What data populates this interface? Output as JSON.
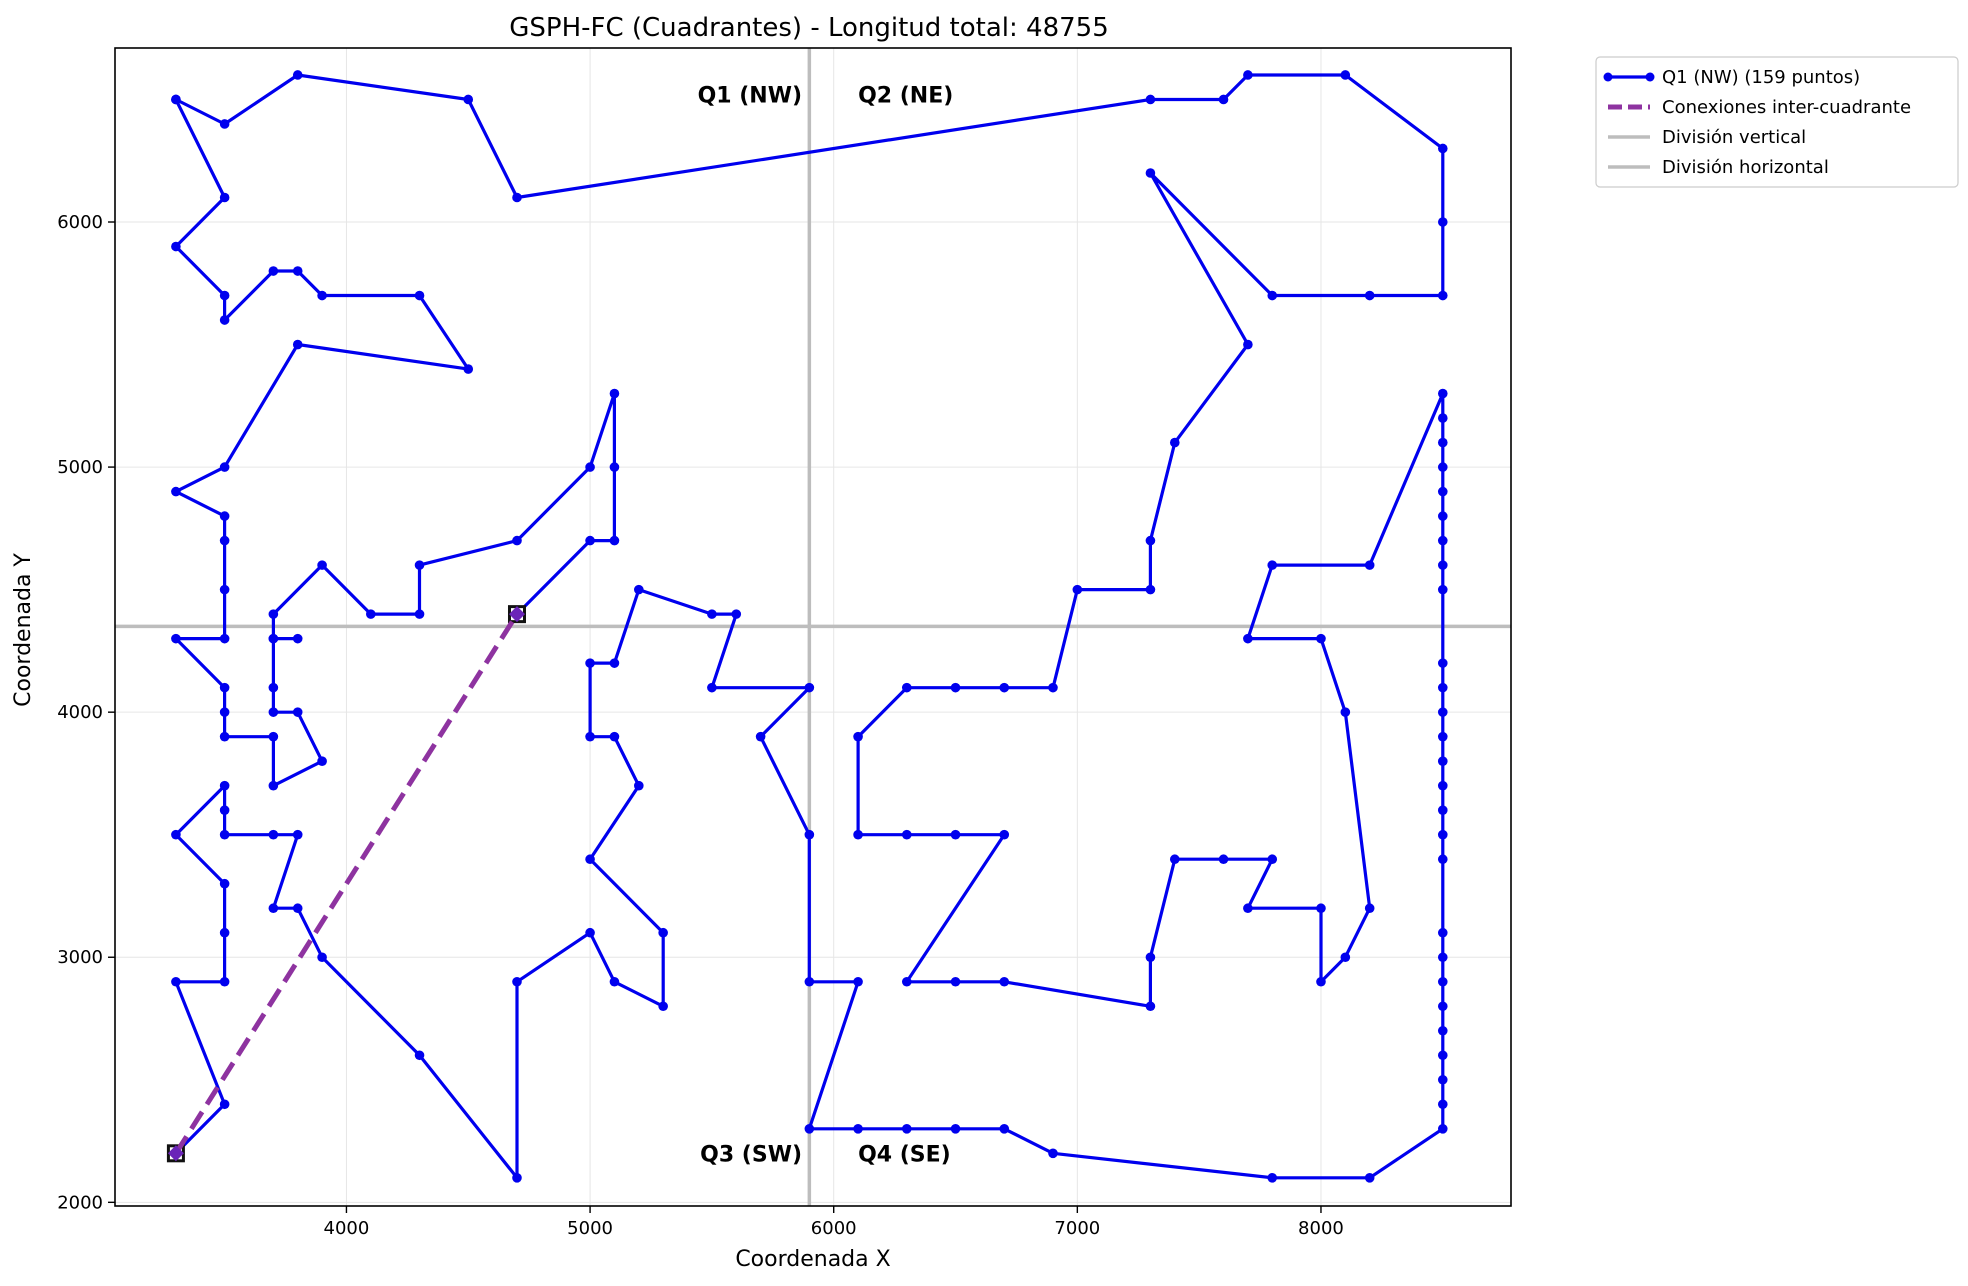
{
  "chart_data": {
    "type": "line",
    "title": "GSPH-FC (Cuadrantes) - Longitud total: 48755",
    "xlabel": "Coordenada X",
    "ylabel": "Coordenada Y",
    "xlim": [
      3050,
      8780
    ],
    "ylim": [
      1985,
      6710
    ],
    "x_ticks": [
      4000,
      5000,
      6000,
      7000,
      8000
    ],
    "y_ticks": [
      2000,
      3000,
      4000,
      5000,
      6000
    ],
    "grid": true,
    "legend_position": "outside-top-right",
    "legend": [
      {
        "label": "Q1 (NW) (159 puntos)",
        "style": "line-marker",
        "color": "#0000ee"
      },
      {
        "label": "Conexiones inter-cuadrante",
        "style": "dashed",
        "color": "#8e33a0"
      },
      {
        "label": "División vertical",
        "style": "line",
        "color": "#bdbdbd"
      },
      {
        "label": "División horizontal",
        "style": "line",
        "color": "#bdbdbd"
      }
    ],
    "divisions": {
      "vertical_x": 5900,
      "horizontal_y": 4350
    },
    "quadrant_labels": [
      {
        "text": "Q1 (NW)",
        "x": 5870,
        "y": 6520,
        "anchor": "end"
      },
      {
        "text": "Q2 (NE)",
        "x": 6100,
        "y": 6520,
        "anchor": "start"
      },
      {
        "text": "Q3 (SW)",
        "x": 5870,
        "y": 2200,
        "anchor": "end"
      },
      {
        "text": "Q4 (SE)",
        "x": 6100,
        "y": 2200,
        "anchor": "start"
      }
    ],
    "series": [
      {
        "name": "Q1 (NW) (159 puntos)",
        "color": "#0000ee",
        "segments": [
          [
            [
              3300,
              6500
            ],
            [
              3500,
              6400
            ],
            [
              3800,
              6600
            ],
            [
              4500,
              6500
            ],
            [
              4700,
              6100
            ],
            [
              7300,
              6500
            ],
            [
              7600,
              6500
            ],
            [
              7700,
              6600
            ],
            [
              8100,
              6600
            ],
            [
              8500,
              6300
            ],
            [
              8500,
              6000
            ],
            [
              8500,
              5700
            ],
            [
              8200,
              5700
            ],
            [
              7800,
              5700
            ],
            [
              7300,
              6200
            ],
            [
              7700,
              5500
            ],
            [
              7400,
              5100
            ],
            [
              7300,
              4700
            ],
            [
              7300,
              4500
            ],
            [
              7000,
              4500
            ],
            [
              6900,
              4100
            ],
            [
              6700,
              4100
            ],
            [
              6500,
              4100
            ],
            [
              6300,
              4100
            ],
            [
              6100,
              3900
            ],
            [
              6100,
              3500
            ],
            [
              6300,
              3500
            ],
            [
              6500,
              3500
            ],
            [
              6700,
              3500
            ],
            [
              6300,
              2900
            ],
            [
              6500,
              2900
            ],
            [
              6700,
              2900
            ],
            [
              7300,
              2800
            ],
            [
              7300,
              3000
            ],
            [
              7400,
              3400
            ],
            [
              7600,
              3400
            ],
            [
              7800,
              3400
            ],
            [
              7700,
              3200
            ],
            [
              8000,
              3200
            ],
            [
              8000,
              2900
            ],
            [
              8100,
              3000
            ],
            [
              8200,
              3200
            ],
            [
              8100,
              4000
            ],
            [
              8000,
              4300
            ],
            [
              7700,
              4300
            ],
            [
              7800,
              4600
            ],
            [
              8200,
              4600
            ],
            [
              8500,
              5300
            ],
            [
              8500,
              5200
            ],
            [
              8500,
              5100
            ],
            [
              8500,
              5000
            ],
            [
              8500,
              4900
            ],
            [
              8500,
              4800
            ],
            [
              8500,
              4700
            ],
            [
              8500,
              4600
            ],
            [
              8500,
              4500
            ],
            [
              8500,
              4200
            ],
            [
              8500,
              4100
            ],
            [
              8500,
              4000
            ],
            [
              8500,
              3900
            ],
            [
              8500,
              3800
            ],
            [
              8500,
              3700
            ],
            [
              8500,
              3600
            ],
            [
              8500,
              3500
            ],
            [
              8500,
              3400
            ],
            [
              8500,
              3100
            ],
            [
              8500,
              3000
            ],
            [
              8500,
              2900
            ],
            [
              8500,
              2800
            ],
            [
              8500,
              2700
            ],
            [
              8500,
              2600
            ],
            [
              8500,
              2500
            ],
            [
              8500,
              2400
            ],
            [
              8500,
              2300
            ],
            [
              8200,
              2100
            ],
            [
              7800,
              2100
            ],
            [
              6900,
              2200
            ],
            [
              6700,
              2300
            ],
            [
              6500,
              2300
            ],
            [
              6300,
              2300
            ],
            [
              6100,
              2300
            ],
            [
              5900,
              2300
            ],
            [
              6100,
              2900
            ],
            [
              5900,
              2900
            ],
            [
              5900,
              3500
            ],
            [
              5700,
              3900
            ],
            [
              5900,
              4100
            ],
            [
              5500,
              4100
            ],
            [
              5600,
              4400
            ],
            [
              5500,
              4400
            ],
            [
              5200,
              4500
            ],
            [
              5100,
              4200
            ],
            [
              5000,
              4200
            ],
            [
              5000,
              3900
            ],
            [
              5100,
              3900
            ],
            [
              5200,
              3700
            ],
            [
              5000,
              3400
            ],
            [
              5300,
              3100
            ],
            [
              5300,
              2800
            ],
            [
              5100,
              2900
            ],
            [
              5000,
              3100
            ],
            [
              4700,
              2900
            ],
            [
              4700,
              2100
            ],
            [
              4300,
              2600
            ],
            [
              3900,
              3000
            ],
            [
              3800,
              3200
            ],
            [
              3700,
              3200
            ],
            [
              3800,
              3500
            ],
            [
              3700,
              3500
            ],
            [
              3500,
              3500
            ],
            [
              3500,
              3600
            ],
            [
              3500,
              3700
            ],
            [
              3300,
              3500
            ],
            [
              3500,
              3300
            ],
            [
              3500,
              3100
            ],
            [
              3500,
              2900
            ],
            [
              3300,
              2900
            ],
            [
              3500,
              2400
            ],
            [
              3300,
              2200
            ]
          ],
          [
            [
              4700,
              4400
            ],
            [
              5000,
              4700
            ],
            [
              5100,
              4700
            ],
            [
              5100,
              5000
            ],
            [
              5100,
              5300
            ],
            [
              5000,
              5000
            ],
            [
              4700,
              4700
            ],
            [
              4300,
              4600
            ],
            [
              4300,
              4400
            ],
            [
              4100,
              4400
            ],
            [
              3900,
              4600
            ],
            [
              3700,
              4400
            ],
            [
              3700,
              4300
            ],
            [
              3800,
              4300
            ],
            [
              3700,
              4300
            ],
            [
              3700,
              4100
            ],
            [
              3700,
              4000
            ],
            [
              3800,
              4000
            ],
            [
              3900,
              3800
            ],
            [
              3700,
              3700
            ],
            [
              3700,
              3900
            ],
            [
              3500,
              3900
            ],
            [
              3500,
              4000
            ],
            [
              3500,
              4100
            ],
            [
              3300,
              4300
            ],
            [
              3500,
              4300
            ],
            [
              3500,
              4500
            ],
            [
              3500,
              4700
            ],
            [
              3500,
              4800
            ],
            [
              3300,
              4900
            ],
            [
              3500,
              5000
            ],
            [
              3800,
              5500
            ],
            [
              4500,
              5400
            ],
            [
              4300,
              5700
            ],
            [
              3900,
              5700
            ],
            [
              3800,
              5800
            ],
            [
              3700,
              5800
            ],
            [
              3500,
              5600
            ],
            [
              3500,
              5700
            ],
            [
              3300,
              5900
            ],
            [
              3500,
              6100
            ],
            [
              3300,
              6500
            ]
          ]
        ]
      },
      {
        "name": "Conexiones inter-cuadrante",
        "color": "#8e33a0",
        "style": "dashed",
        "points": [
          [
            3300,
            2200
          ],
          [
            4700,
            4400
          ]
        ]
      }
    ],
    "endpoint_markers": [
      [
        3300,
        2200
      ],
      [
        4700,
        4400
      ]
    ]
  }
}
